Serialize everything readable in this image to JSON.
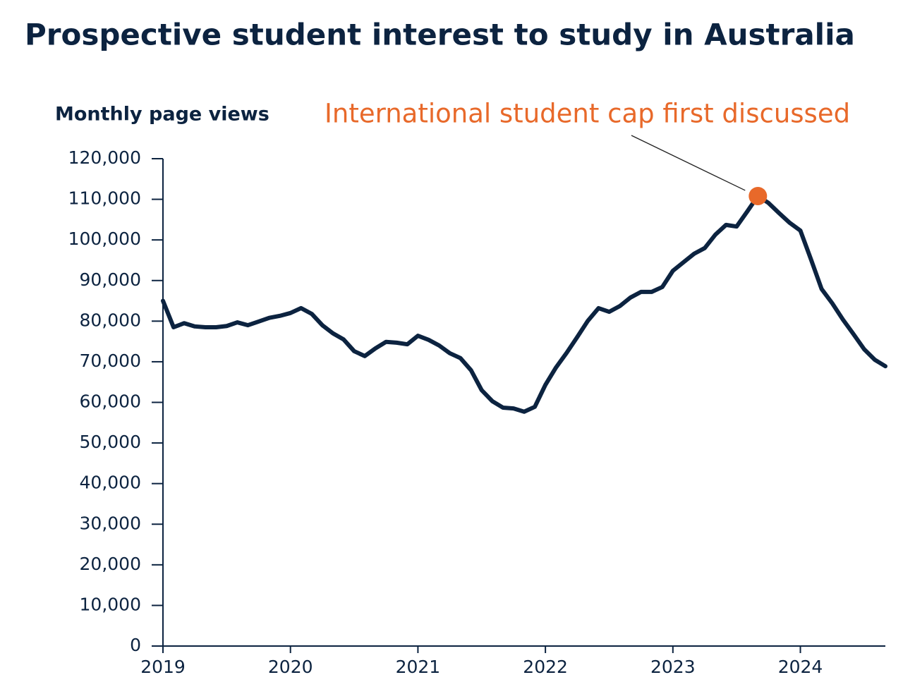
{
  "chart_data": {
    "type": "line",
    "title": "Prospective student interest to study in Australia",
    "y_label": "Monthly page views",
    "x": [
      2019,
      2019.0833,
      2019.1667,
      2019.25,
      2019.3333,
      2019.4167,
      2019.5,
      2019.5833,
      2019.6667,
      2019.75,
      2019.8333,
      2019.9167,
      2020,
      2020.0833,
      2020.1667,
      2020.25,
      2020.3333,
      2020.4167,
      2020.5,
      2020.5833,
      2020.6667,
      2020.75,
      2020.8333,
      2020.9167,
      2021,
      2021.0833,
      2021.1667,
      2021.25,
      2021.3333,
      2021.4167,
      2021.5,
      2021.5833,
      2021.6667,
      2021.75,
      2021.8333,
      2021.9167,
      2022,
      2022.0833,
      2022.1667,
      2022.25,
      2022.3333,
      2022.4167,
      2022.5,
      2022.5833,
      2022.6667,
      2022.75,
      2022.8333,
      2022.9167,
      2023,
      2023.0833,
      2023.1667,
      2023.25,
      2023.3333,
      2023.4167,
      2023.5,
      2023.5833,
      2023.6667,
      2023.75,
      2023.8333,
      2023.9167,
      2024,
      2024.0833,
      2024.1667,
      2024.25,
      2024.3333,
      2024.4167,
      2024.5,
      2024.5833,
      2024.6667
    ],
    "series": [
      {
        "name": "Monthly page views",
        "color": "#0c2340",
        "values": [
          85000,
          78500,
          79500,
          78700,
          78500,
          78500,
          78800,
          79700,
          79000,
          79900,
          80800,
          81300,
          82000,
          83200,
          81800,
          79000,
          77000,
          75500,
          72600,
          71400,
          73300,
          74900,
          74700,
          74300,
          76400,
          75400,
          74000,
          72100,
          70900,
          67900,
          63000,
          60300,
          58700,
          58500,
          57700,
          58900,
          64300,
          68600,
          72200,
          76100,
          80100,
          83200,
          82300,
          83700,
          85800,
          87200,
          87200,
          88400,
          92400,
          94500,
          96600,
          98000,
          101300,
          103700,
          103300,
          107000,
          110800,
          109100,
          106600,
          104200,
          102300,
          95200,
          87900,
          84400,
          80400,
          76800,
          73100,
          70500,
          68900
        ]
      }
    ],
    "annotation": {
      "text": "International student cap first discussed",
      "x": 2023.6667,
      "color": "#e8692a"
    },
    "xlim": [
      2019,
      2024.6667
    ],
    "xticks": [
      2019,
      2020,
      2021,
      2022,
      2023,
      2024
    ],
    "ylim": [
      0,
      120000
    ],
    "yticks": [
      0,
      {
        "value": 10000,
        "label": "10,000"
      },
      {
        "value": 20000,
        "label": "20,000"
      },
      {
        "value": 30000,
        "label": "30,000"
      },
      {
        "value": 40000,
        "label": "40,000"
      },
      {
        "value": 50000,
        "label": "50,000"
      },
      {
        "value": 60000,
        "label": "60,000"
      },
      {
        "value": 70000,
        "label": "70,000"
      },
      {
        "value": 80000,
        "label": "80,000"
      },
      {
        "value": 90000,
        "label": "90,000"
      },
      {
        "value": 100000,
        "label": "100,000"
      },
      {
        "value": 110000,
        "label": "110,000"
      },
      {
        "value": 120000,
        "label": "120,000"
      }
    ],
    "grid": false
  }
}
